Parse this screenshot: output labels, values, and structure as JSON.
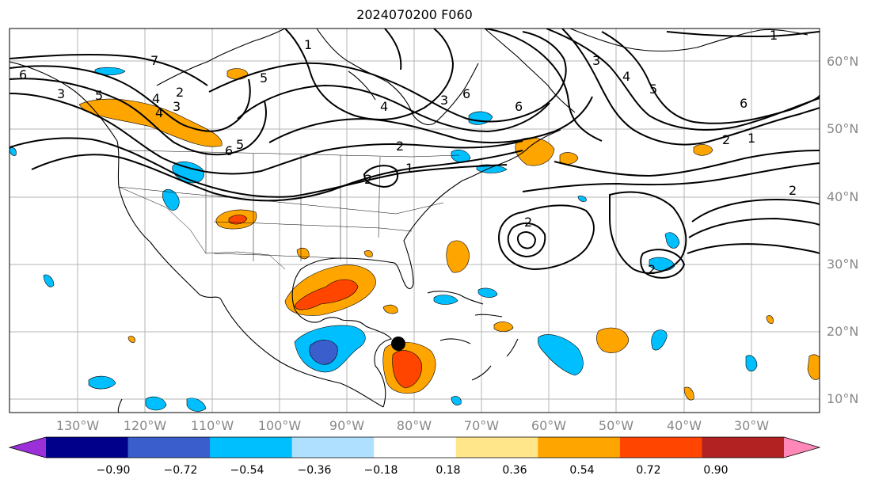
{
  "title": "2024070200 F060",
  "lat_labels": [
    "60°N",
    "50°N",
    "40°N",
    "30°N",
    "20°N",
    "10°N"
  ],
  "lon_labels": [
    "130°W",
    "120°W",
    "110°W",
    "100°W",
    "90°W",
    "80°W",
    "70°W",
    "60°W",
    "50°W",
    "40°W",
    "30°W"
  ],
  "colorbar": {
    "ticks": [
      "−0.90",
      "−0.72",
      "−0.54",
      "−0.36",
      "−0.18",
      "0.18",
      "0.36",
      "0.54",
      "0.72",
      "0.90"
    ],
    "colors": [
      "#9b30d8",
      "#00008b",
      "#3a5fcd",
      "#00bfff",
      "#b0e0ff",
      "#ffffff",
      "#ffe68a",
      "#ffa500",
      "#ff4500",
      "#b22222",
      "#ff88b8"
    ]
  },
  "contour_labels": [
    "6",
    "7",
    "5",
    "4",
    "3",
    "2",
    "1",
    "6",
    "5",
    "4",
    "3",
    "2",
    "1",
    "6",
    "5",
    "4",
    "3",
    "2",
    "1",
    "6",
    "2",
    "1",
    "2",
    "2",
    "2",
    "3",
    "4",
    "5",
    "6"
  ],
  "storm_marker": "storm-center"
}
